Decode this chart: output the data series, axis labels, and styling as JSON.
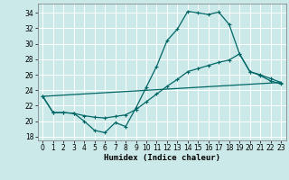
{
  "xlabel": "Humidex (Indice chaleur)",
  "bg_color": "#cce9e9",
  "grid_color": "#ffffff",
  "line_color": "#006666",
  "xlim": [
    -0.5,
    23.5
  ],
  "ylim": [
    17.5,
    35.2
  ],
  "xticks": [
    0,
    1,
    2,
    3,
    4,
    5,
    6,
    7,
    8,
    9,
    10,
    11,
    12,
    13,
    14,
    15,
    16,
    17,
    18,
    19,
    20,
    21,
    22,
    23
  ],
  "yticks": [
    18,
    20,
    22,
    24,
    26,
    28,
    30,
    32,
    34
  ],
  "line1_x": [
    0,
    1,
    2,
    3,
    4,
    5,
    6,
    7,
    8,
    9,
    10,
    11,
    12,
    13,
    14,
    15,
    16,
    17,
    18,
    19,
    20,
    21,
    22,
    23
  ],
  "line1_y": [
    23.2,
    21.1,
    21.1,
    21.0,
    20.0,
    18.8,
    18.5,
    19.8,
    19.3,
    21.7,
    24.4,
    27.1,
    30.4,
    31.9,
    34.2,
    34.0,
    33.8,
    34.1,
    32.5,
    28.7,
    26.4,
    25.9,
    25.2,
    24.8
  ],
  "line2_x": [
    0,
    1,
    2,
    3,
    4,
    5,
    6,
    7,
    8,
    9,
    10,
    11,
    12,
    13,
    14,
    15,
    16,
    17,
    18,
    19,
    20,
    21,
    22,
    23
  ],
  "line2_y": [
    23.2,
    21.1,
    21.1,
    21.0,
    20.7,
    20.5,
    20.4,
    20.6,
    20.8,
    21.5,
    22.5,
    23.5,
    24.5,
    25.4,
    26.4,
    26.8,
    27.2,
    27.6,
    27.9,
    28.7,
    26.4,
    26.0,
    25.5,
    25.0
  ],
  "line3_x": [
    0,
    23
  ],
  "line3_y": [
    23.2,
    25.0
  ]
}
